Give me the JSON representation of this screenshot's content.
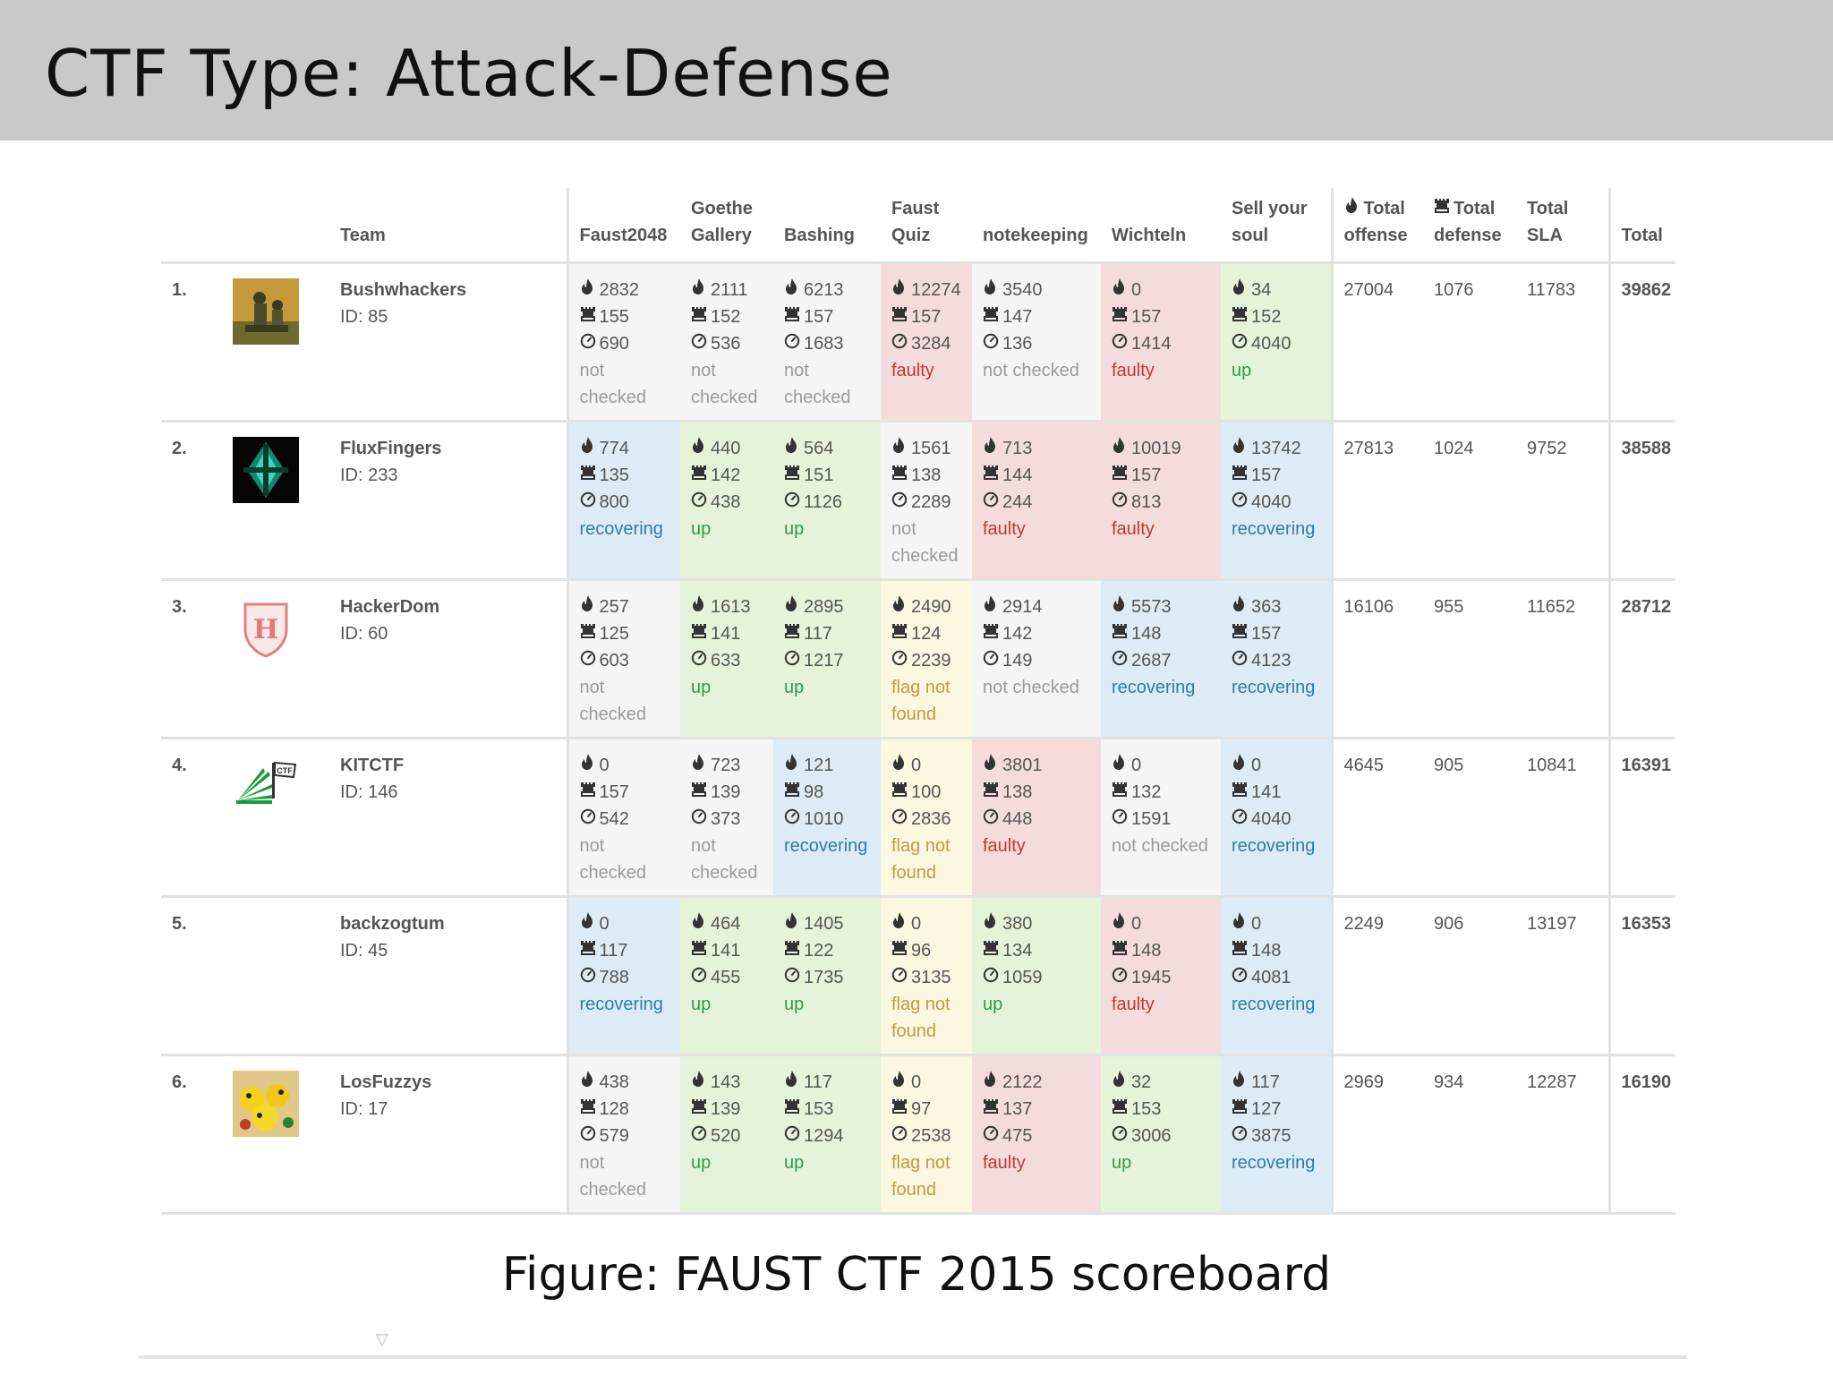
{
  "slide": {
    "title": "CTF Type:  Attack-Defense",
    "caption": "Figure:  FAUST CTF 2015 scoreboard"
  },
  "table": {
    "headers": {
      "team": "Team",
      "services": [
        [
          "Faust2048"
        ],
        [
          "Goethe",
          "Gallery"
        ],
        [
          "Bashing"
        ],
        [
          "Faust",
          "Quiz"
        ],
        [
          "notekeeping"
        ],
        [
          "Wichteln"
        ],
        [
          "Sell your",
          "soul"
        ]
      ],
      "total_offense": [
        "Total",
        "offense"
      ],
      "total_defense": [
        "Total",
        "defense"
      ],
      "total_sla": [
        "Total",
        "SLA"
      ],
      "total": "Total"
    },
    "icons": {
      "offense": "fire-icon",
      "defense": "castle-icon",
      "sla": "clock-icon"
    },
    "status_colors": {
      "not-checked": "#f5f5f5",
      "up": "#e5f3da",
      "faulty": "#f5dcdc",
      "recovering": "#dcebf5",
      "flag-not-found": "#fbf7e1"
    },
    "rows": [
      {
        "rank": "1.",
        "name": "Bushwhackers",
        "id": "ID: 85",
        "logo": "bushwhackers-logo",
        "services": [
          {
            "off": "2832",
            "def": "155",
            "sla": "690",
            "status": "not checked",
            "status_key": "not-checked"
          },
          {
            "off": "2111",
            "def": "152",
            "sla": "536",
            "status": "not checked",
            "status_key": "not-checked"
          },
          {
            "off": "6213",
            "def": "157",
            "sla": "1683",
            "status": "not checked",
            "status_key": "not-checked"
          },
          {
            "off": "12274",
            "def": "157",
            "sla": "3284",
            "status": "faulty",
            "status_key": "faulty"
          },
          {
            "off": "3540",
            "def": "147",
            "sla": "136",
            "status": "not checked",
            "status_key": "not-checked"
          },
          {
            "off": "0",
            "def": "157",
            "sla": "1414",
            "status": "faulty",
            "status_key": "faulty"
          },
          {
            "off": "34",
            "def": "152",
            "sla": "4040",
            "status": "up",
            "status_key": "up"
          }
        ],
        "total_offense": "27004",
        "total_defense": "1076",
        "total_sla": "11783",
        "total": "39862"
      },
      {
        "rank": "2.",
        "name": "FluxFingers",
        "id": "ID: 233",
        "logo": "fluxfingers-logo",
        "services": [
          {
            "off": "774",
            "def": "135",
            "sla": "800",
            "status": "recovering",
            "status_key": "recovering"
          },
          {
            "off": "440",
            "def": "142",
            "sla": "438",
            "status": "up",
            "status_key": "up"
          },
          {
            "off": "564",
            "def": "151",
            "sla": "1126",
            "status": "up",
            "status_key": "up"
          },
          {
            "off": "1561",
            "def": "138",
            "sla": "2289",
            "status": "not checked",
            "status_key": "not-checked"
          },
          {
            "off": "713",
            "def": "144",
            "sla": "244",
            "status": "faulty",
            "status_key": "faulty"
          },
          {
            "off": "10019",
            "def": "157",
            "sla": "813",
            "status": "faulty",
            "status_key": "faulty"
          },
          {
            "off": "13742",
            "def": "157",
            "sla": "4040",
            "status": "recovering",
            "status_key": "recovering"
          }
        ],
        "total_offense": "27813",
        "total_defense": "1024",
        "total_sla": "9752",
        "total": "38588"
      },
      {
        "rank": "3.",
        "name": "HackerDom",
        "id": "ID: 60",
        "logo": "hackerdom-logo",
        "services": [
          {
            "off": "257",
            "def": "125",
            "sla": "603",
            "status": "not checked",
            "status_key": "not-checked"
          },
          {
            "off": "1613",
            "def": "141",
            "sla": "633",
            "status": "up",
            "status_key": "up"
          },
          {
            "off": "2895",
            "def": "117",
            "sla": "1217",
            "status": "up",
            "status_key": "up"
          },
          {
            "off": "2490",
            "def": "124",
            "sla": "2239",
            "status": "flag not found",
            "status_key": "flag-not-found"
          },
          {
            "off": "2914",
            "def": "142",
            "sla": "149",
            "status": "not checked",
            "status_key": "not-checked"
          },
          {
            "off": "5573",
            "def": "148",
            "sla": "2687",
            "status": "recovering",
            "status_key": "recovering"
          },
          {
            "off": "363",
            "def": "157",
            "sla": "4123",
            "status": "recovering",
            "status_key": "recovering"
          }
        ],
        "total_offense": "16106",
        "total_defense": "955",
        "total_sla": "11652",
        "total": "28712"
      },
      {
        "rank": "4.",
        "name": "KITCTF",
        "id": "ID: 146",
        "logo": "kitctf-logo",
        "services": [
          {
            "off": "0",
            "def": "157",
            "sla": "542",
            "status": "not checked",
            "status_key": "not-checked"
          },
          {
            "off": "723",
            "def": "139",
            "sla": "373",
            "status": "not checked",
            "status_key": "not-checked"
          },
          {
            "off": "121",
            "def": "98",
            "sla": "1010",
            "status": "recovering",
            "status_key": "recovering"
          },
          {
            "off": "0",
            "def": "100",
            "sla": "2836",
            "status": "flag not found",
            "status_key": "flag-not-found"
          },
          {
            "off": "3801",
            "def": "138",
            "sla": "448",
            "status": "faulty",
            "status_key": "faulty"
          },
          {
            "off": "0",
            "def": "132",
            "sla": "1591",
            "status": "not checked",
            "status_key": "not-checked"
          },
          {
            "off": "0",
            "def": "141",
            "sla": "4040",
            "status": "recovering",
            "status_key": "recovering"
          }
        ],
        "total_offense": "4645",
        "total_defense": "905",
        "total_sla": "10841",
        "total": "16391"
      },
      {
        "rank": "5.",
        "name": "backzogtum",
        "id": "ID: 45",
        "logo": "",
        "services": [
          {
            "off": "0",
            "def": "117",
            "sla": "788",
            "status": "recovering",
            "status_key": "recovering"
          },
          {
            "off": "464",
            "def": "141",
            "sla": "455",
            "status": "up",
            "status_key": "up"
          },
          {
            "off": "1405",
            "def": "122",
            "sla": "1735",
            "status": "up",
            "status_key": "up"
          },
          {
            "off": "0",
            "def": "96",
            "sla": "3135",
            "status": "flag not found",
            "status_key": "flag-not-found"
          },
          {
            "off": "380",
            "def": "134",
            "sla": "1059",
            "status": "up",
            "status_key": "up"
          },
          {
            "off": "0",
            "def": "148",
            "sla": "1945",
            "status": "faulty",
            "status_key": "faulty"
          },
          {
            "off": "0",
            "def": "148",
            "sla": "4081",
            "status": "recovering",
            "status_key": "recovering"
          }
        ],
        "total_offense": "2249",
        "total_defense": "906",
        "total_sla": "13197",
        "total": "16353"
      },
      {
        "rank": "6.",
        "name": "LosFuzzys",
        "id": "ID: 17",
        "logo": "losfuzzys-logo",
        "services": [
          {
            "off": "438",
            "def": "128",
            "sla": "579",
            "status": "not checked",
            "status_key": "not-checked"
          },
          {
            "off": "143",
            "def": "139",
            "sla": "520",
            "status": "up",
            "status_key": "up"
          },
          {
            "off": "117",
            "def": "153",
            "sla": "1294",
            "status": "up",
            "status_key": "up"
          },
          {
            "off": "0",
            "def": "97",
            "sla": "2538",
            "status": "flag not found",
            "status_key": "flag-not-found"
          },
          {
            "off": "2122",
            "def": "137",
            "sla": "475",
            "status": "faulty",
            "status_key": "faulty"
          },
          {
            "off": "32",
            "def": "153",
            "sla": "3006",
            "status": "up",
            "status_key": "up"
          },
          {
            "off": "117",
            "def": "127",
            "sla": "3875",
            "status": "recovering",
            "status_key": "recovering"
          }
        ],
        "total_offense": "2969",
        "total_defense": "934",
        "total_sla": "12287",
        "total": "16190"
      }
    ]
  }
}
